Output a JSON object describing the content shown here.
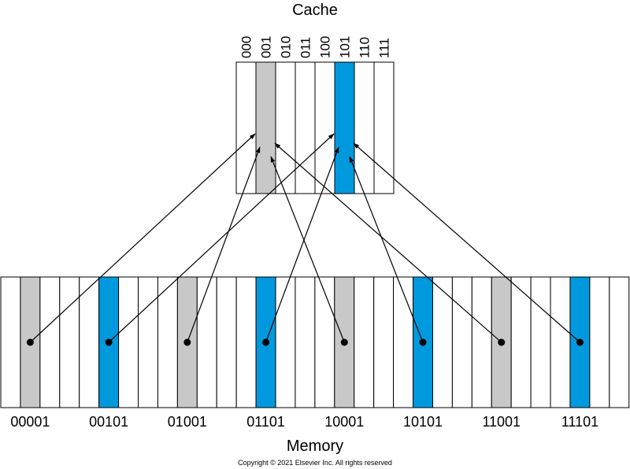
{
  "cache": {
    "title": "Cache",
    "indices": [
      "000",
      "001",
      "010",
      "011",
      "100",
      "101",
      "110",
      "111"
    ],
    "highlight": {
      "001": "#c8c8c8",
      "101": "#0099dd"
    }
  },
  "memory": {
    "title": "Memory",
    "addresses": [
      "00001",
      "00101",
      "01001",
      "01101",
      "10001",
      "10101",
      "11001",
      "11101"
    ],
    "maps_to": [
      "001",
      "101",
      "001",
      "101",
      "001",
      "101",
      "001",
      "101"
    ]
  },
  "colors": {
    "gray": "#c8c8c8",
    "blue": "#0099dd",
    "line": "#000000"
  },
  "copyright": "Copyright © 2021 Elsevier Inc. All rights reserved"
}
